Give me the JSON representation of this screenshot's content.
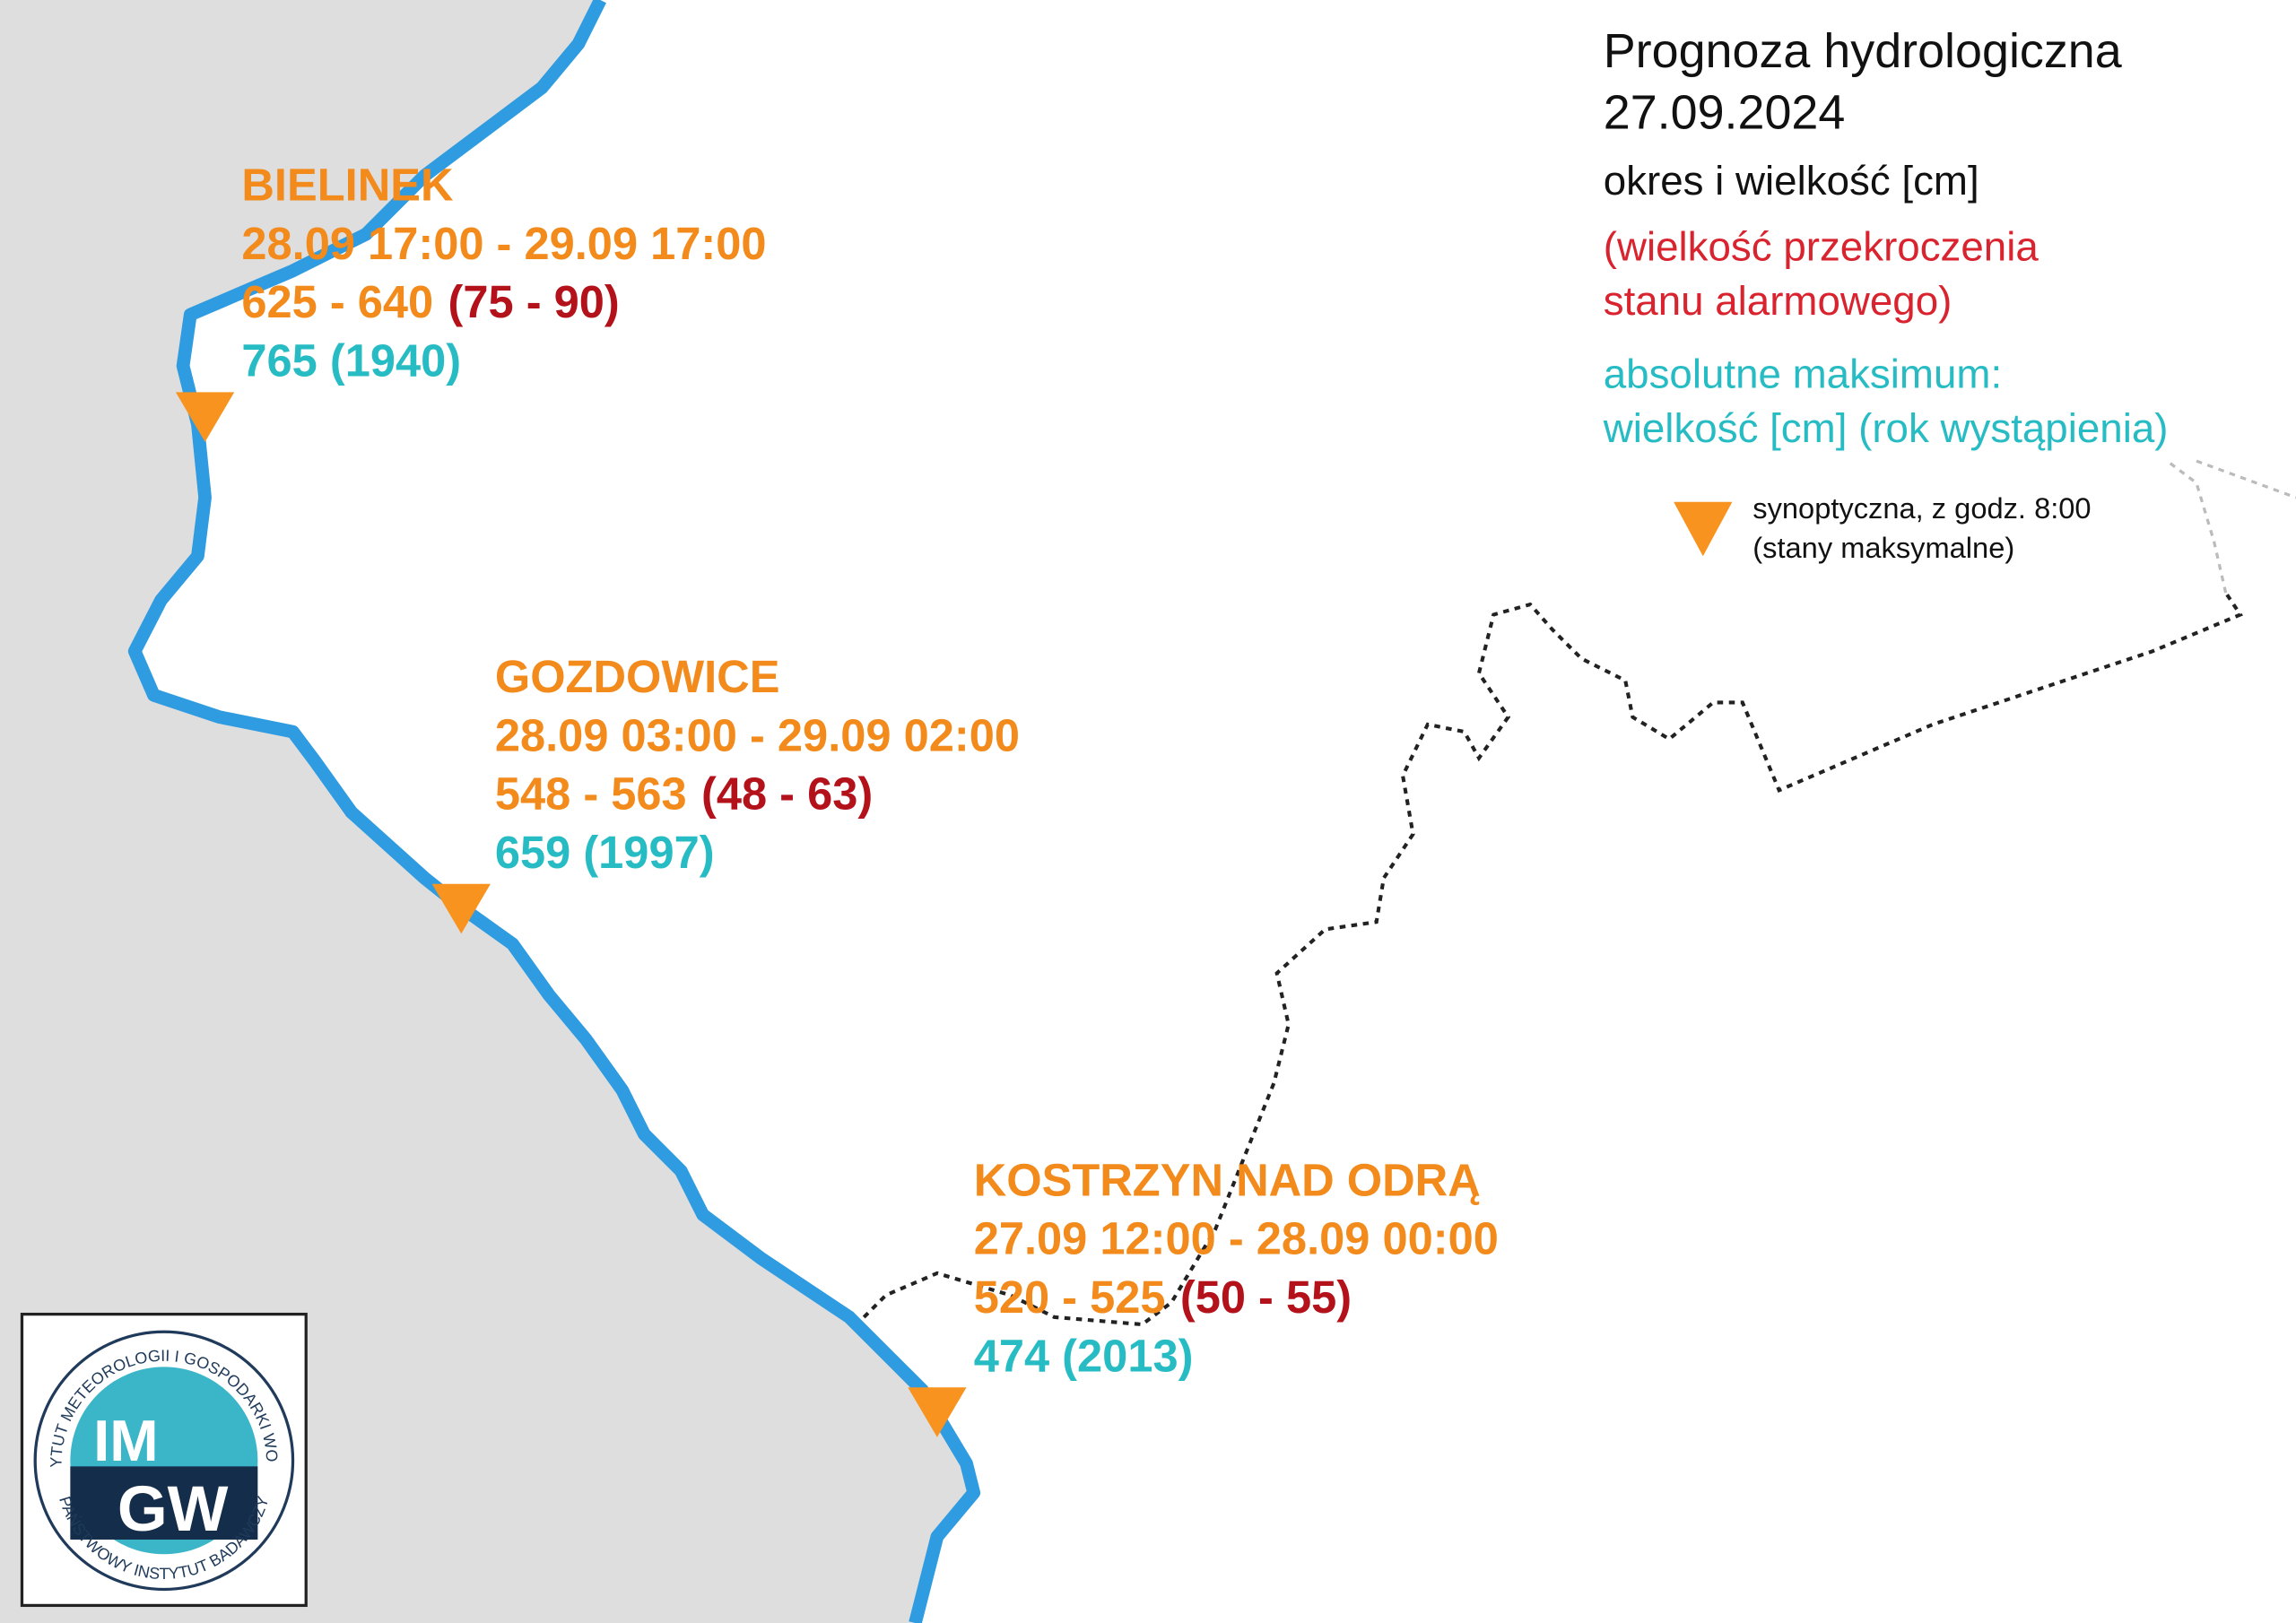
{
  "legend": {
    "title": "Prognoza hydrologiczna",
    "date": "27.09.2024",
    "period_label": "okres i wielkość [cm]",
    "excess_label": [
      "(wielkość przekroczenia",
      "stanu alarmowego)"
    ],
    "maximum_label": [
      "absolutne maksimum:",
      "wielkość [cm] (rok wystąpienia)"
    ],
    "symbol_label": [
      "synoptyczna, z godz. 8:00",
      "(stany maksymalne)"
    ]
  },
  "stations": [
    {
      "name": "BIELINEK",
      "period": "28.09 17:00 - 29.09 17:00",
      "range": "625 - 640",
      "excess": "(75 - 90)",
      "maximum": "765 (1940)"
    },
    {
      "name": "GOZDOWICE",
      "period": "28.09 03:00 - 29.09 02:00",
      "range": "548 - 563",
      "excess": "(48 - 63)",
      "maximum": "659 (1997)"
    },
    {
      "name": "KOSTRZYN NAD ODRĄ",
      "period": "27.09 12:00 - 28.09 00:00",
      "range": "520 - 525",
      "excess": "(50 - 55)",
      "maximum": "474 (2013)"
    }
  ],
  "logo": {
    "ring_top": "INSTYTUT METEOROLOGII I GOSPODARKI WODNEJ",
    "ring_bottom": "PAŃSTWOWY INSTYTUT BADAWCZY",
    "top": "IM",
    "bottom": "GW"
  }
}
